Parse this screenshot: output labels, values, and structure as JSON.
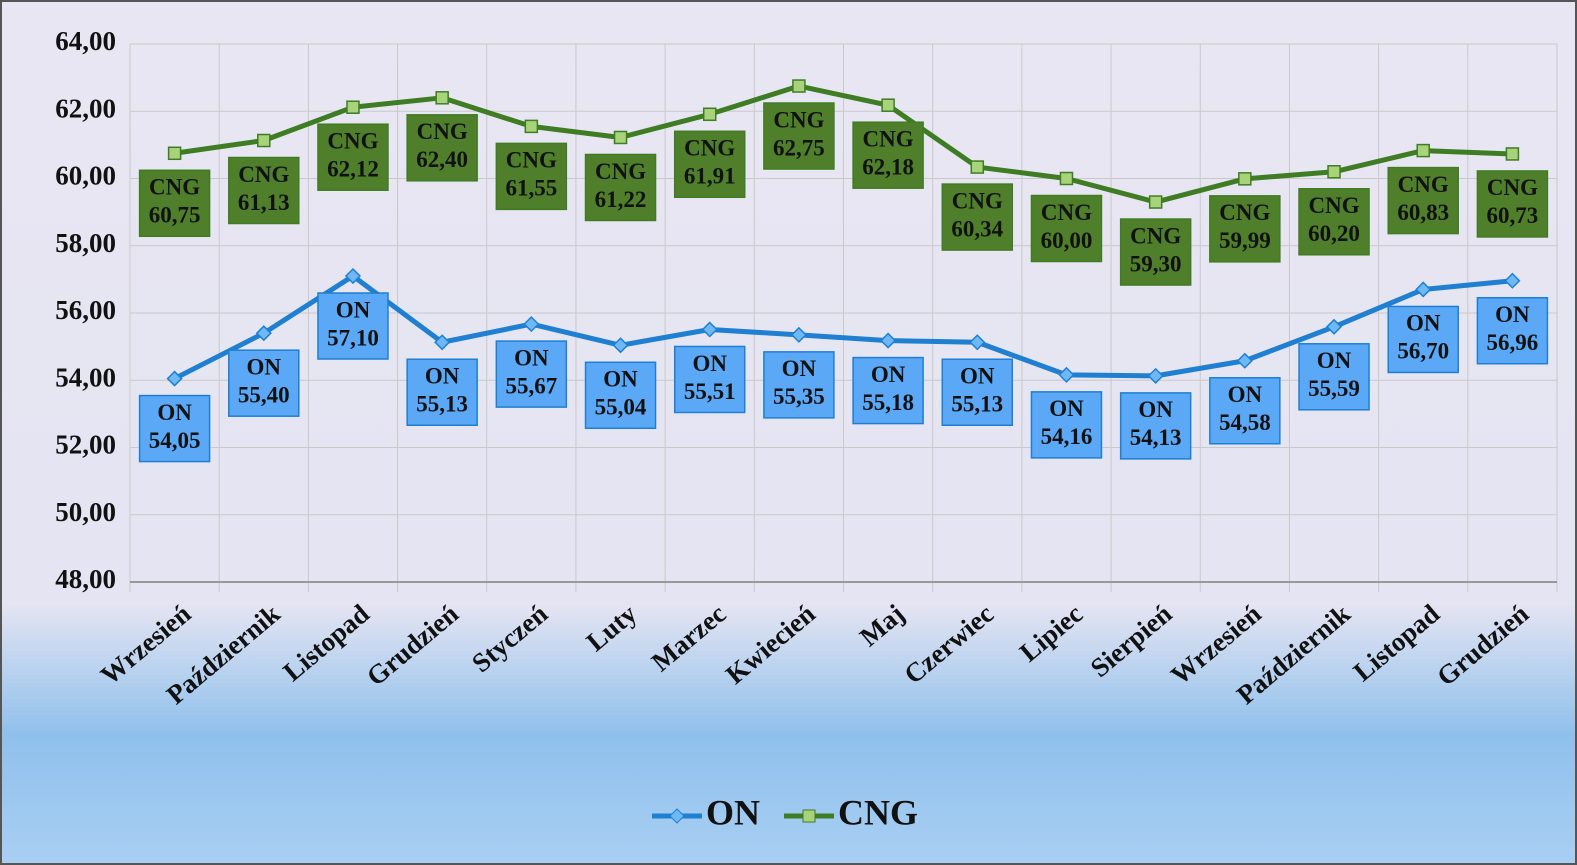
{
  "chart_data": {
    "type": "line",
    "categories": [
      "Wrzesień",
      "Październik",
      "Listopad",
      "Grudzień",
      "Styczeń",
      "Luty",
      "Marzec",
      "Kwiecień",
      "Maj",
      "Czerwiec",
      "Lipiec",
      "Sierpień",
      "Wrzesień",
      "Październik",
      "Listopad",
      "Grudzień"
    ],
    "series": [
      {
        "name": "ON",
        "color": "#1f7fd0",
        "label_fill": "#5aa8f6",
        "marker": "diamond",
        "values": [
          54.05,
          55.4,
          57.1,
          55.13,
          55.67,
          55.04,
          55.51,
          55.35,
          55.18,
          55.13,
          54.16,
          54.13,
          54.58,
          55.59,
          56.7,
          56.96
        ],
        "value_labels": [
          "54,05",
          "55,40",
          "57,10",
          "55,13",
          "55,67",
          "55,04",
          "55,51",
          "55,35",
          "55,18",
          "55,13",
          "54,16",
          "54,13",
          "54,58",
          "55,59",
          "56,70",
          "56,96"
        ]
      },
      {
        "name": "CNG",
        "color": "#3f7d24",
        "label_fill": "#4f7f2a",
        "marker": "square",
        "values": [
          60.75,
          61.13,
          62.12,
          62.4,
          61.55,
          61.22,
          61.91,
          62.75,
          62.18,
          60.34,
          60.0,
          59.3,
          59.99,
          60.2,
          60.83,
          60.73
        ],
        "value_labels": [
          "60,75",
          "61,13",
          "62,12",
          "62,40",
          "61,55",
          "61,22",
          "61,91",
          "62,75",
          "62,18",
          "60,34",
          "60,00",
          "59,30",
          "59,99",
          "60,20",
          "60,83",
          "60,73"
        ]
      }
    ],
    "ylim": [
      48,
      64
    ],
    "yticks": [
      {
        "value": 48,
        "label": "48,00"
      },
      {
        "value": 50,
        "label": "50,00"
      },
      {
        "value": 52,
        "label": "52,00"
      },
      {
        "value": 54,
        "label": "54,00"
      },
      {
        "value": 56,
        "label": "56,00"
      },
      {
        "value": 58,
        "label": "58,00"
      },
      {
        "value": 60,
        "label": "60,00"
      },
      {
        "value": 62,
        "label": "62,00"
      },
      {
        "value": 64,
        "label": "64,00"
      }
    ],
    "grid": true,
    "legend": "bottom"
  }
}
